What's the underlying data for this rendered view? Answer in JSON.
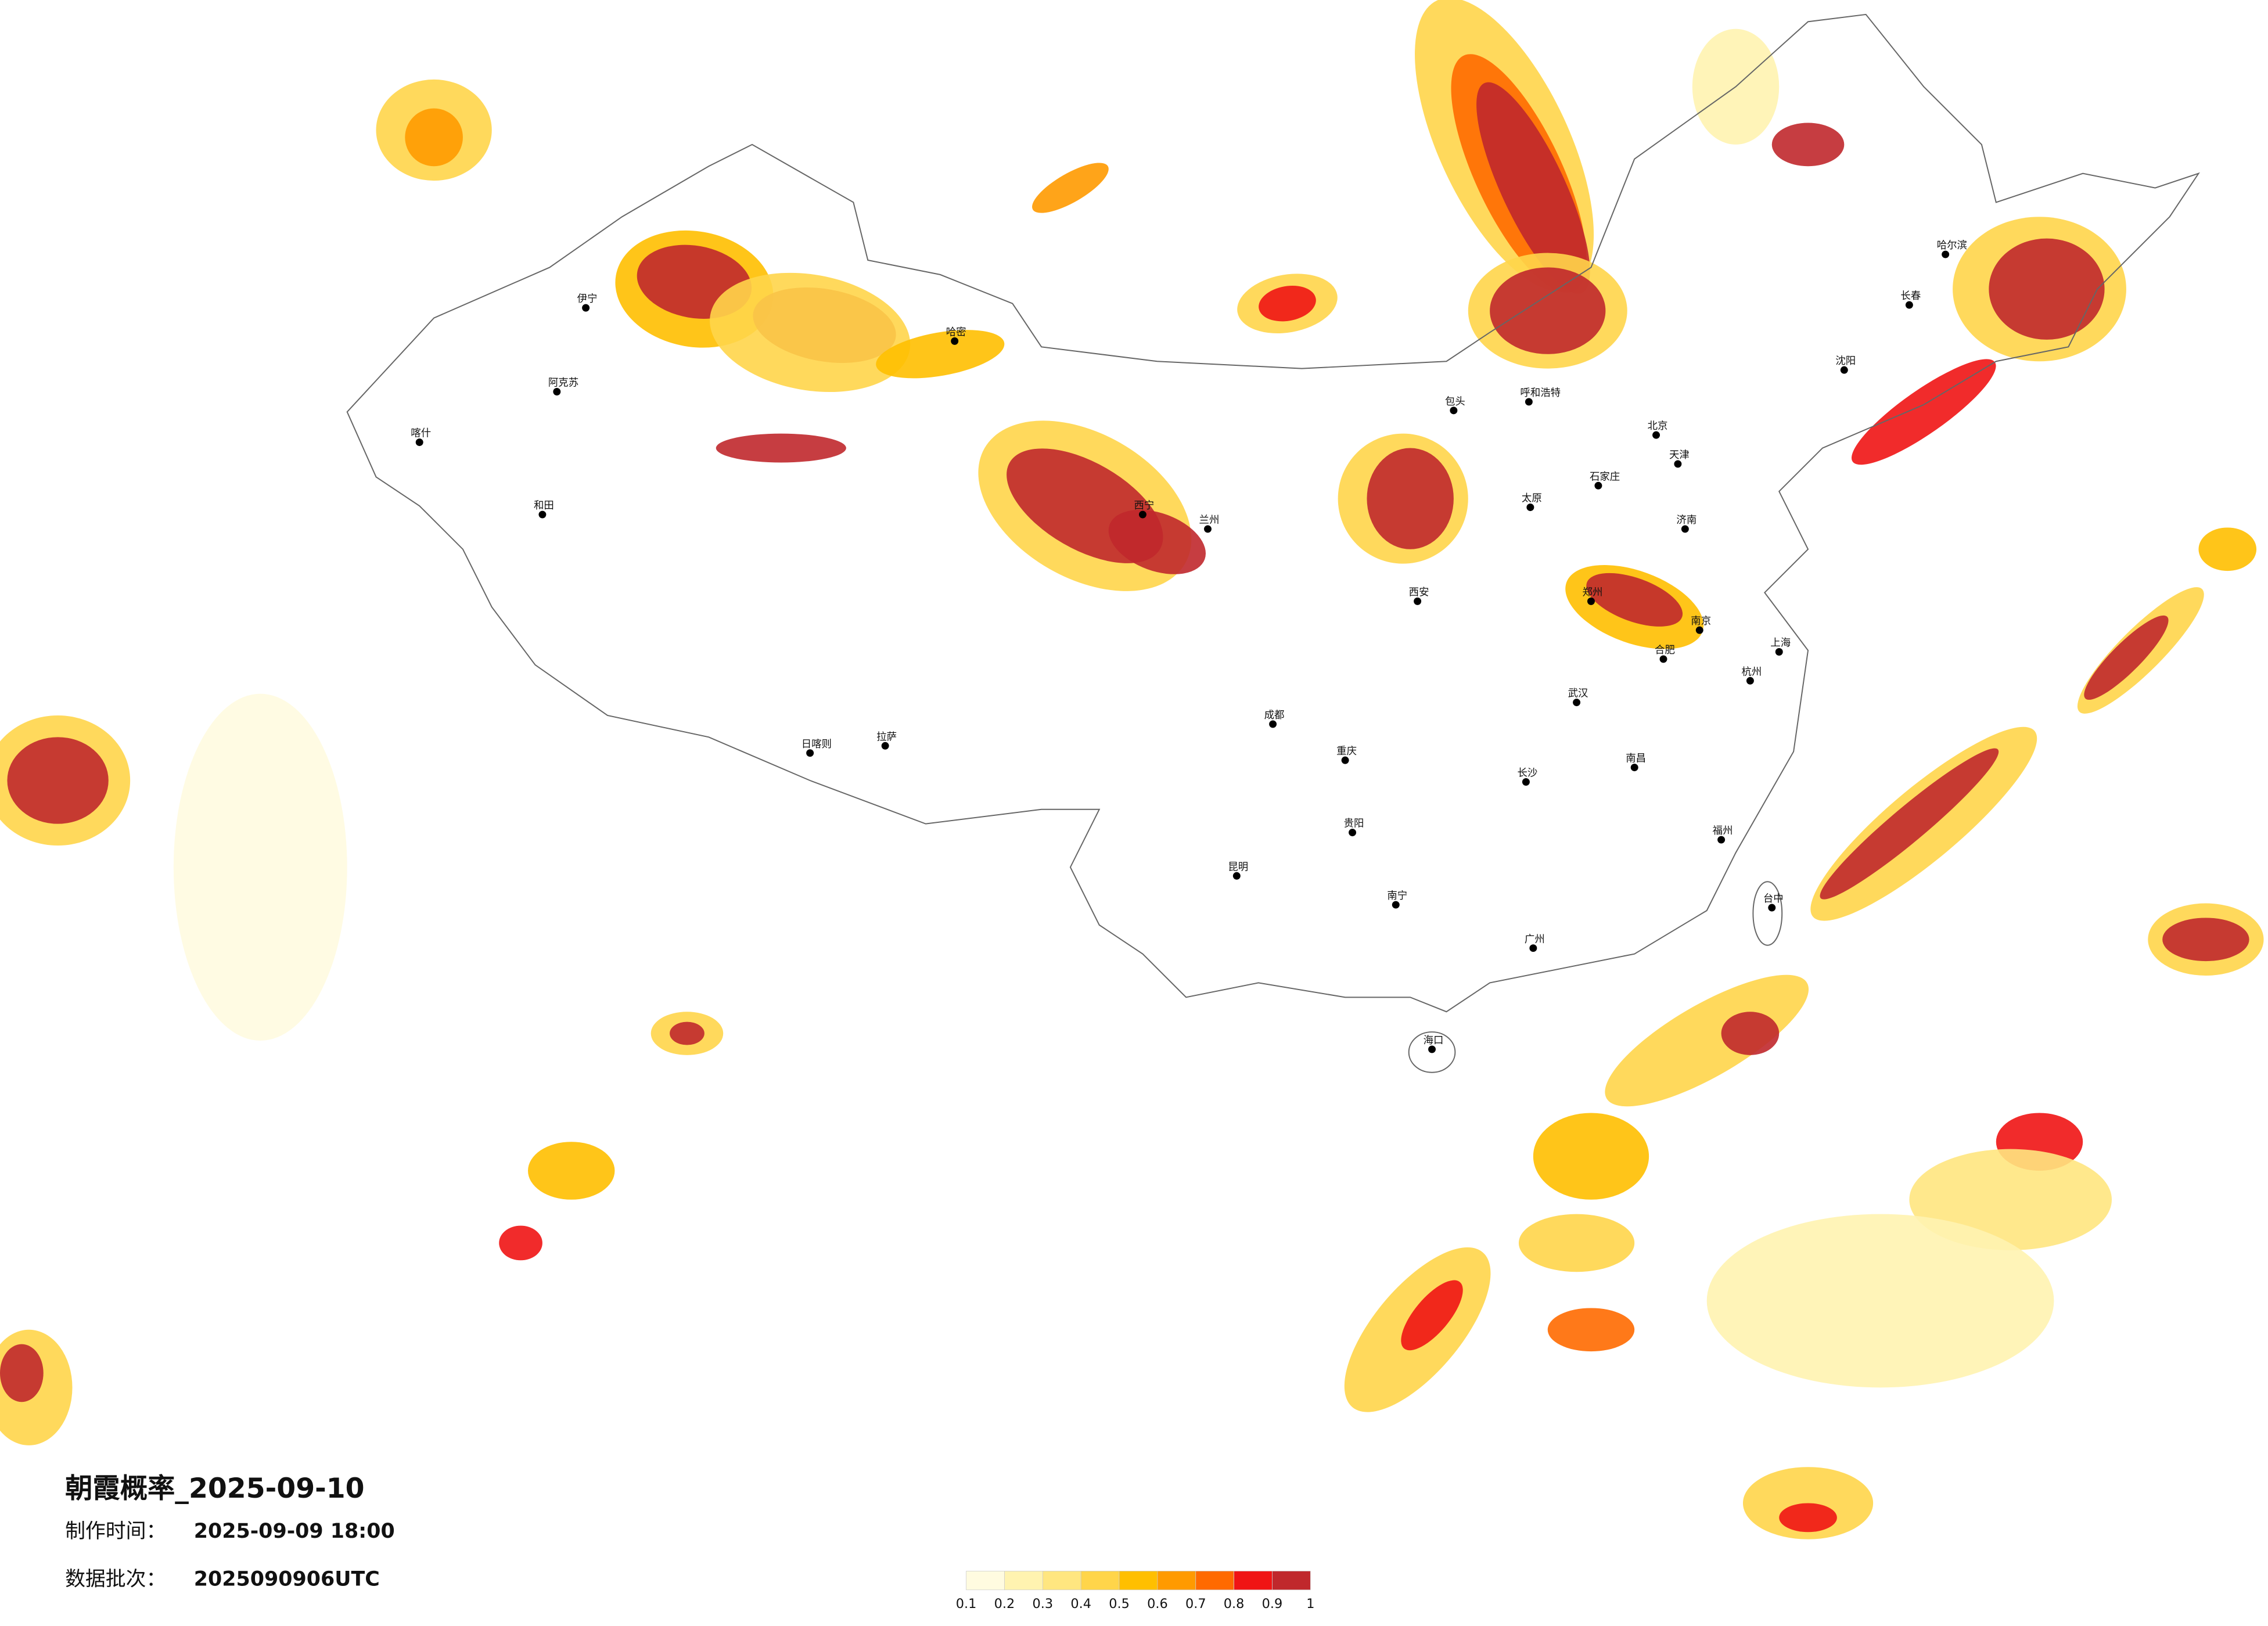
{
  "title": "朝霞概率_2025-09-10",
  "make_time_label": "制作时间：",
  "make_time": "2025-09-09 18:00",
  "batch_label": "数据批次：",
  "batch": "2025090906UTC",
  "legend": {
    "ticks": [
      0.1,
      0.2,
      0.3,
      0.4,
      0.5,
      0.6,
      0.7,
      0.8,
      0.9,
      1
    ],
    "colors": [
      "#fffbe0",
      "#fff3b0",
      "#ffe680",
      "#ffd54a",
      "#ffbf00",
      "#ff9a00",
      "#ff6a00",
      "#f01414",
      "#c0282c"
    ]
  },
  "cities": [
    "伊宁",
    "阿克苏",
    "喀什",
    "和田",
    "哈密",
    "拉萨",
    "日喀则",
    "呼和浩特",
    "包头",
    "北京",
    "天津",
    "石家庄",
    "太原",
    "济南",
    "郑州",
    "西安",
    "兰州",
    "西宁",
    "成都",
    "重庆",
    "贵阳",
    "昆明",
    "南宁",
    "广州",
    "长沙",
    "武汉",
    "南昌",
    "福州",
    "杭州",
    "上海",
    "南京",
    "合肥",
    "沈阳",
    "长春",
    "哈尔滨",
    "海口",
    "台中"
  ]
}
